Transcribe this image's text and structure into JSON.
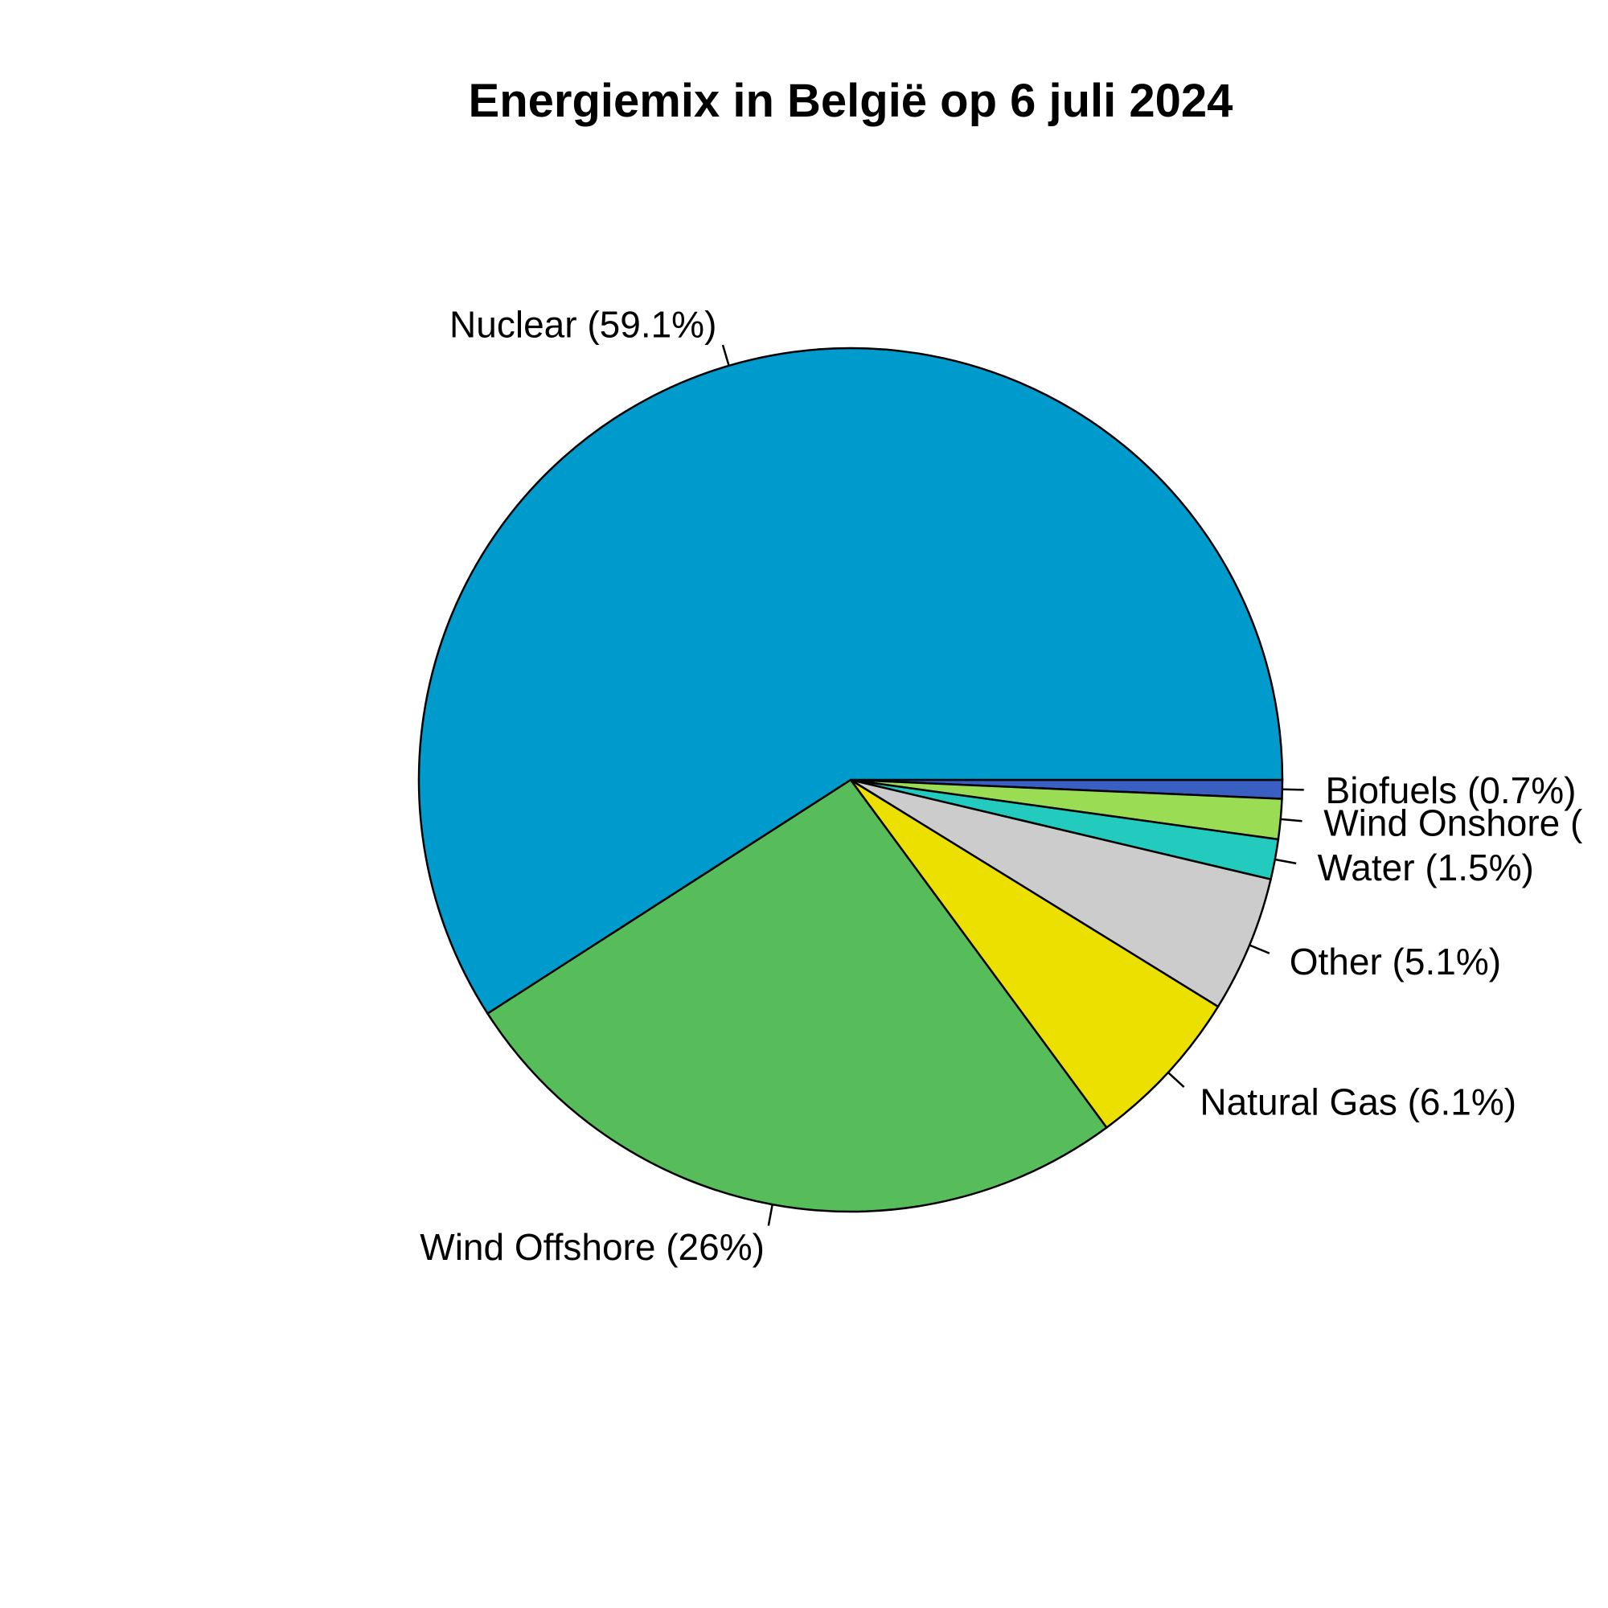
{
  "chart_data": {
    "type": "pie",
    "title": "Energiemix in België op 6 juli 2024",
    "slices": [
      {
        "label": "Biofuels (0.7%)",
        "value": 0.7,
        "color": "#3a5fc2"
      },
      {
        "label": "Wind Onshore (",
        "value": 1.5,
        "color": "#9bdc55"
      },
      {
        "label": "Water (1.5%)",
        "value": 1.5,
        "color": "#22cbbd"
      },
      {
        "label": "Other (5.1%)",
        "value": 5.1,
        "color": "#cccccc"
      },
      {
        "label": "Natural Gas (6.1%)",
        "value": 6.1,
        "color": "#ebe000"
      },
      {
        "label": "Wind Offshore (26%)",
        "value": 26.0,
        "color": "#56bd5a"
      },
      {
        "label": "Nuclear (59.1%)",
        "value": 59.1,
        "color": "#009bcd"
      }
    ],
    "direction": "clockwise",
    "start_angle": "3 o'clock"
  }
}
